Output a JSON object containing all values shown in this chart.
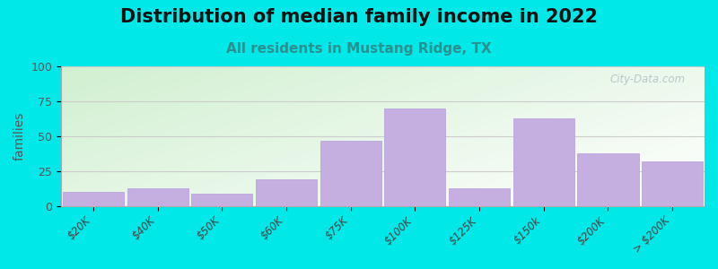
{
  "title": "Distribution of median family income in 2022",
  "subtitle": "All residents in Mustang Ridge, TX",
  "xlabel": "",
  "ylabel": "families",
  "categories": [
    "$20K",
    "$40K",
    "$50K",
    "$60K",
    "$75K",
    "$100K",
    "$125K",
    "$150k",
    "$200K",
    "> $200K"
  ],
  "values": [
    10,
    13,
    9,
    19,
    47,
    70,
    13,
    63,
    38,
    32
  ],
  "ylim": [
    0,
    100
  ],
  "yticks": [
    0,
    25,
    50,
    75,
    100
  ],
  "bar_color": "#c5aee0",
  "bar_edge_color": "#b39ddb",
  "background_outer": "#00e8e8",
  "title_fontsize": 15,
  "subtitle_fontsize": 11,
  "subtitle_color": "#2a9090",
  "ylabel_fontsize": 10,
  "watermark_text": "City-Data.com",
  "watermark_color": "#b0bec5"
}
